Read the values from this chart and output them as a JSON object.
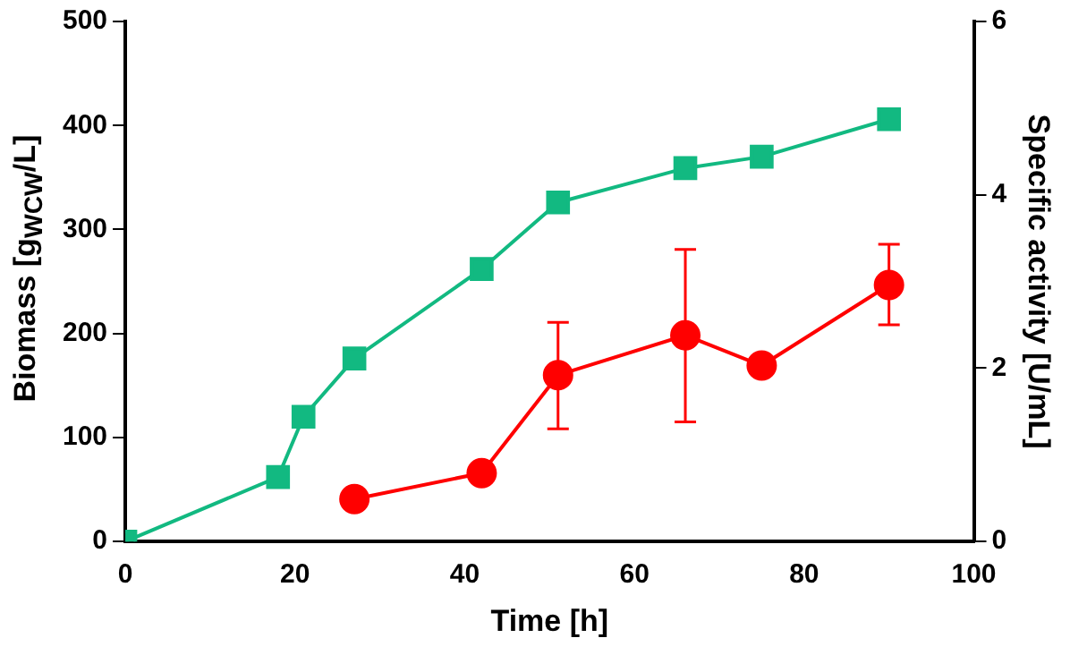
{
  "chart_data": {
    "type": "line",
    "xlabel": "Time [h]",
    "ylabel": "Biomass [g$_{WCW}$/L]",
    "y2label": "Specific activity [U/mL]",
    "xlim": [
      0,
      100
    ],
    "xticks": [
      0,
      20,
      40,
      60,
      80,
      100
    ],
    "ylim": [
      0,
      500
    ],
    "yticks": [
      0,
      100,
      200,
      300,
      400,
      500
    ],
    "y2lim": [
      0,
      6
    ],
    "y2ticks": [
      0,
      2,
      4,
      6
    ],
    "grid": false,
    "series": [
      {
        "color": "#12b981",
        "marker": "square",
        "x": [
          0,
          18,
          21,
          27,
          42,
          51,
          66,
          75,
          90
        ],
        "values": [
          0,
          62,
          120,
          176,
          262,
          326,
          359,
          370,
          406
        ]
      },
      {
        "color": "#ff0000",
        "marker": "circle",
        "axis": "y2",
        "x": [
          27,
          42,
          51,
          66,
          75,
          90
        ],
        "values": [
          0.49,
          0.79,
          1.92,
          2.38,
          2.03,
          2.96
        ],
        "errors": [
          null,
          null,
          [
            1.3,
            2.53
          ],
          [
            1.38,
            3.37
          ],
          null,
          [
            2.5,
            3.43
          ]
        ]
      }
    ]
  }
}
